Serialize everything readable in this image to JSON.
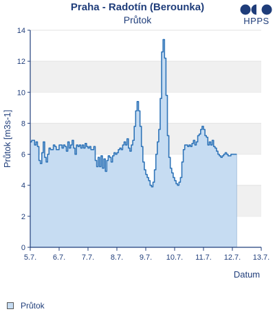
{
  "header": {
    "title": "Praha - Radotín (Berounka)",
    "subtitle": "Průtok",
    "logo_text": "HPPS"
  },
  "colors": {
    "line": "#2f74b8",
    "fill": "#c6dcf2",
    "band": "#f0f0f0",
    "axis": "#1f3d7a"
  },
  "legend": {
    "label": "Průtok"
  },
  "chart_data": {
    "type": "area",
    "title": "Praha - Radotín (Berounka)",
    "subtitle": "Průtok",
    "xlabel": "Datum",
    "ylabel": "Průtok [m3s-1]",
    "ylim": [
      0,
      14
    ],
    "yticks": [
      "0",
      "2",
      "4",
      "6",
      "8",
      "10",
      "12",
      "14"
    ],
    "xlim": [
      0,
      8
    ],
    "xticks": [
      "5.7.",
      "6.7.",
      "7.7.",
      "8.7.",
      "9.7.",
      "10.7.",
      "11.7.",
      "12.7.",
      "13.7."
    ],
    "grid": "alternating horizontal bands",
    "legend_position": "bottom-left",
    "series": [
      {
        "name": "Průtok",
        "x": [
          0.0,
          0.05,
          0.1,
          0.15,
          0.2,
          0.25,
          0.3,
          0.35,
          0.4,
          0.45,
          0.5,
          0.55,
          0.6,
          0.65,
          0.7,
          0.75,
          0.8,
          0.85,
          0.9,
          0.95,
          1.0,
          1.05,
          1.1,
          1.15,
          1.2,
          1.25,
          1.3,
          1.35,
          1.4,
          1.45,
          1.5,
          1.55,
          1.6,
          1.65,
          1.7,
          1.75,
          1.8,
          1.85,
          1.9,
          1.95,
          2.0,
          2.05,
          2.1,
          2.15,
          2.2,
          2.25,
          2.3,
          2.35,
          2.4,
          2.45,
          2.5,
          2.55,
          2.6,
          2.65,
          2.7,
          2.75,
          2.8,
          2.85,
          2.9,
          2.95,
          3.0,
          3.05,
          3.1,
          3.15,
          3.2,
          3.25,
          3.3,
          3.35,
          3.4,
          3.45,
          3.5,
          3.55,
          3.6,
          3.65,
          3.7,
          3.75,
          3.8,
          3.85,
          3.9,
          3.95,
          4.0,
          4.05,
          4.1,
          4.15,
          4.2,
          4.25,
          4.3,
          4.35,
          4.4,
          4.45,
          4.5,
          4.55,
          4.6,
          4.65,
          4.7,
          4.75,
          4.8,
          4.85,
          4.9,
          4.95,
          5.0,
          5.05,
          5.1,
          5.15,
          5.2,
          5.25,
          5.3,
          5.35,
          5.4,
          5.45,
          5.5,
          5.55,
          5.6,
          5.65,
          5.7,
          5.75,
          5.8,
          5.85,
          5.9,
          5.95,
          6.0,
          6.05,
          6.1,
          6.15,
          6.2,
          6.25,
          6.3,
          6.35,
          6.4,
          6.45,
          6.5,
          6.55,
          6.6,
          6.65,
          6.7,
          6.75,
          6.8,
          6.85,
          6.9,
          6.95,
          7.0,
          7.05,
          7.1,
          7.15
        ],
        "values": [
          6.8,
          6.9,
          6.9,
          6.6,
          6.8,
          6.5,
          5.6,
          5.4,
          6.1,
          6.8,
          5.8,
          5.5,
          6.0,
          6.4,
          6.3,
          6.3,
          6.6,
          6.5,
          6.3,
          6.3,
          6.6,
          6.6,
          6.4,
          6.6,
          6.5,
          6.2,
          6.8,
          6.4,
          6.6,
          6.9,
          6.4,
          6.0,
          6.6,
          6.5,
          6.6,
          6.4,
          6.6,
          6.4,
          6.7,
          6.5,
          6.4,
          6.5,
          6.3,
          6.3,
          6.5,
          5.6,
          5.2,
          5.8,
          5.2,
          5.9,
          5.1,
          5.7,
          4.9,
          5.6,
          5.9,
          5.8,
          5.5,
          5.9,
          6.1,
          6.0,
          6.1,
          6.3,
          6.4,
          6.3,
          6.6,
          6.8,
          6.6,
          7.0,
          6.4,
          6.2,
          6.6,
          6.9,
          7.8,
          8.8,
          9.4,
          8.8,
          7.8,
          6.5,
          5.5,
          5.0,
          4.7,
          4.5,
          4.3,
          4.0,
          3.9,
          4.2,
          5.0,
          6.0,
          6.8,
          7.6,
          9.6,
          12.6,
          13.4,
          12.2,
          9.8,
          7.2,
          5.8,
          5.1,
          4.8,
          4.5,
          4.3,
          4.1,
          4.0,
          4.2,
          4.5,
          5.5,
          6.3,
          6.6,
          6.6,
          6.5,
          6.6,
          6.5,
          6.7,
          6.9,
          6.6,
          6.8,
          7.2,
          7.3,
          7.6,
          7.8,
          7.6,
          7.2,
          7.1,
          6.6,
          6.8,
          6.6,
          6.9,
          6.5,
          6.4,
          6.2,
          6.0,
          5.9,
          5.8,
          5.9,
          6.0,
          6.1,
          6.0,
          5.9,
          5.9,
          6.0,
          6.0,
          6.0,
          6.0,
          6.0
        ]
      }
    ]
  }
}
